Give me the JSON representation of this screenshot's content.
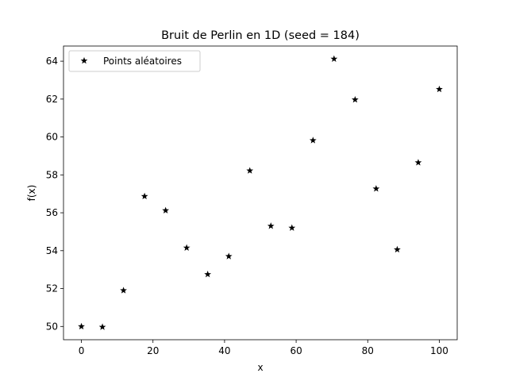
{
  "chart_data": {
    "type": "scatter",
    "title": "Bruit de Perlin en 1D (seed = 184)",
    "xlabel": "x",
    "ylabel": "f(x)",
    "xlim": [
      -5,
      105
    ],
    "ylim": [
      49.3,
      64.8
    ],
    "xticks": [
      0,
      20,
      40,
      60,
      80,
      100
    ],
    "yticks": [
      50,
      52,
      54,
      56,
      58,
      60,
      62,
      64
    ],
    "grid": false,
    "legend_position": "top-left",
    "marker": "star",
    "marker_color": "#000000",
    "series": [
      {
        "name": "Points aléatoires",
        "x": [
          0,
          5.88,
          11.76,
          17.65,
          23.53,
          29.41,
          35.29,
          41.18,
          47.06,
          52.94,
          58.82,
          64.71,
          70.59,
          76.47,
          82.35,
          88.24,
          94.12,
          100
        ],
        "y": [
          50.0,
          49.97,
          51.9,
          56.87,
          56.12,
          54.15,
          52.75,
          53.7,
          58.22,
          55.3,
          55.2,
          59.82,
          64.12,
          61.97,
          57.27,
          54.06,
          58.65,
          62.52
        ]
      }
    ]
  }
}
